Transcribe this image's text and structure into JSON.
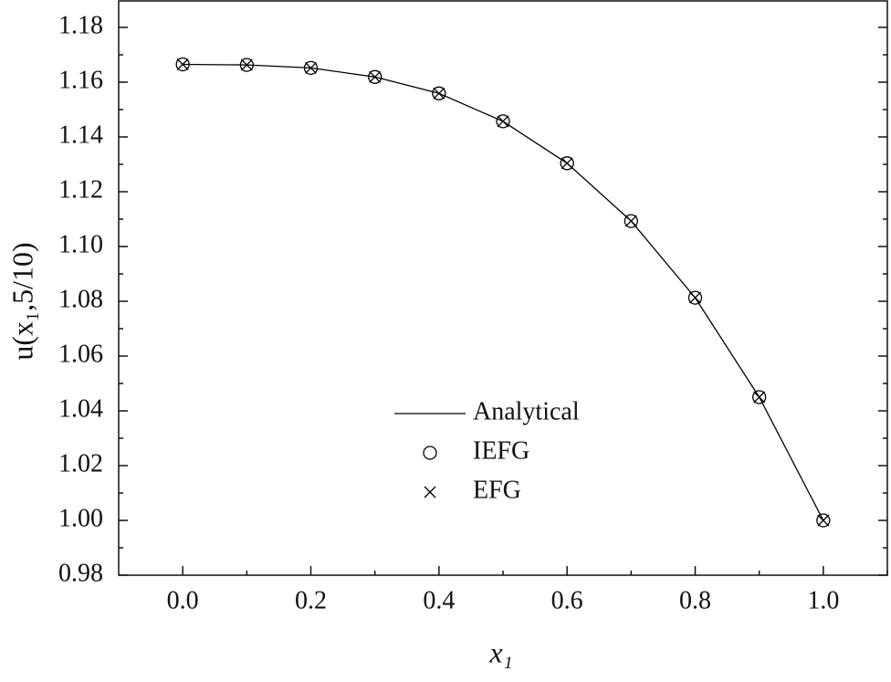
{
  "chart_data": {
    "type": "line",
    "xlabel": "x₁",
    "ylabel": "u(x₁,5/10)",
    "x": [
      0.0,
      0.1,
      0.2,
      0.3,
      0.4,
      0.5,
      0.6,
      0.7,
      0.8,
      0.9,
      1.0
    ],
    "series": [
      {
        "name": "Analytical",
        "color": "#000000",
        "style": "line",
        "values": [
          1.1665,
          1.1663,
          1.1652,
          1.1619,
          1.1559,
          1.1457,
          1.1304,
          1.1093,
          1.0813,
          1.045,
          1.0
        ]
      },
      {
        "name": "IEFG",
        "color": "#000000",
        "style": "circle",
        "values": [
          1.1665,
          1.1663,
          1.1652,
          1.1619,
          1.1559,
          1.1457,
          1.1304,
          1.1093,
          1.0813,
          1.045,
          1.0
        ]
      },
      {
        "name": "EFG",
        "color": "#000000",
        "style": "cross",
        "values": [
          1.1665,
          1.1663,
          1.1652,
          1.1619,
          1.1559,
          1.1457,
          1.1304,
          1.1093,
          1.0813,
          1.045,
          1.0
        ]
      }
    ],
    "xlim": [
      -0.1,
      1.1
    ],
    "xticks": [
      {
        "value": 0,
        "label": "0.0"
      },
      {
        "value": 0.2,
        "label": "0.2"
      },
      {
        "value": 0.4,
        "label": "0.4"
      },
      {
        "value": 0.6,
        "label": "0.6"
      },
      {
        "value": 0.8,
        "label": "0.8"
      },
      {
        "value": 1,
        "label": "1.0"
      }
    ],
    "ylim": [
      0.98,
      1.19
    ],
    "yticks": [
      0.98,
      {
        "value": 1,
        "label": "1.00"
      },
      1.02,
      1.04,
      1.06,
      1.08,
      {
        "value": 1.1,
        "label": "1.10"
      },
      1.12,
      1.14,
      1.16,
      1.18
    ],
    "legend": "lower-center"
  }
}
